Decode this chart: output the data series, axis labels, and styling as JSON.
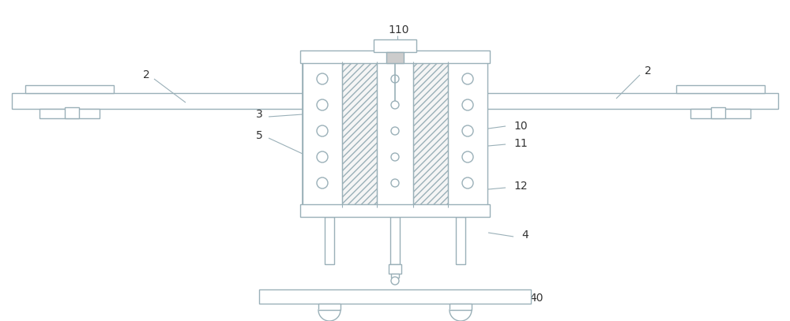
{
  "bg_color": "#ffffff",
  "line_color": "#9ab0b8",
  "lc2": "#8aa0a8",
  "fig_width": 10.0,
  "fig_height": 4.07,
  "labels": {
    "2_left": "2",
    "2_right": "2",
    "3": "3",
    "5": "5",
    "10": "10",
    "11": "11",
    "12": "12",
    "4": "4",
    "40": "40",
    "110": "110"
  }
}
